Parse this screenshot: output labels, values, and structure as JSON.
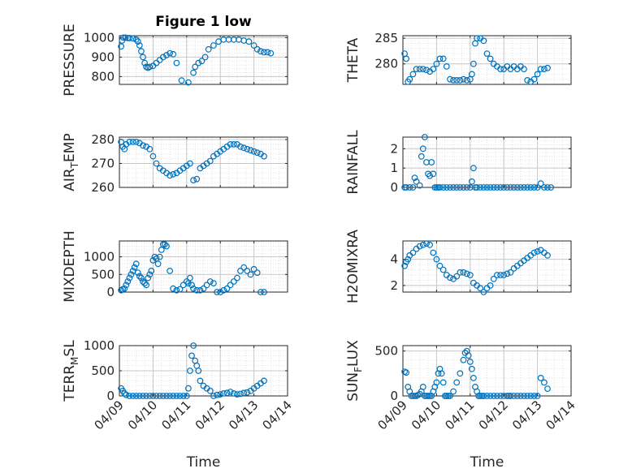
{
  "figure": {
    "title": "Figure 1 low"
  },
  "colors": {
    "marker": "#0072bd",
    "axis": "#262626",
    "grid": "#c8c8c8",
    "minor_grid": "#e2e2e2"
  },
  "chart_data": [
    {
      "id": "pressure",
      "type": "scatter",
      "title": "Figure 1 low",
      "ylabel": "PRESSURE",
      "ylim": [
        760,
        1010
      ],
      "yticks": [
        800,
        900,
        1000
      ],
      "xlim": [
        0,
        5
      ],
      "grid": true,
      "xlabel": "",
      "xticklabels": [],
      "x": [
        0.05,
        0.08,
        0.12,
        0.18,
        0.25,
        0.3,
        0.4,
        0.5,
        0.55,
        0.6,
        0.65,
        0.7,
        0.75,
        0.8,
        0.85,
        0.9,
        1.0,
        1.1,
        1.2,
        1.3,
        1.4,
        1.5,
        1.6,
        1.7,
        1.85,
        2.05,
        2.2,
        2.25,
        2.35,
        2.45,
        2.55,
        2.65,
        2.8,
        2.95,
        3.1,
        3.25,
        3.4,
        3.55,
        3.7,
        3.85,
        4.0,
        4.1,
        4.2,
        4.3,
        4.4,
        4.5
      ],
      "y": [
        955,
        985,
        1000,
        1000,
        998,
        998,
        996,
        990,
        980,
        960,
        930,
        900,
        870,
        850,
        845,
        850,
        855,
        870,
        885,
        900,
        910,
        920,
        915,
        870,
        780,
        770,
        820,
        850,
        870,
        880,
        900,
        940,
        960,
        980,
        990,
        990,
        990,
        990,
        985,
        980,
        960,
        940,
        930,
        925,
        925,
        920
      ]
    },
    {
      "id": "theta",
      "type": "scatter",
      "ylabel": "THETA",
      "ylim": [
        276,
        285.5
      ],
      "yticks": [
        280,
        285
      ],
      "xlim": [
        0,
        5
      ],
      "grid": true,
      "xlabel": "",
      "xticklabels": [],
      "x": [
        0.05,
        0.1,
        0.15,
        0.2,
        0.3,
        0.4,
        0.5,
        0.6,
        0.7,
        0.8,
        0.9,
        1.0,
        1.1,
        1.2,
        1.3,
        1.4,
        1.5,
        1.6,
        1.7,
        1.8,
        1.9,
        2.0,
        2.05,
        2.1,
        2.15,
        2.2,
        2.3,
        2.4,
        2.5,
        2.6,
        2.7,
        2.8,
        2.9,
        3.0,
        3.1,
        3.2,
        3.3,
        3.4,
        3.5,
        3.6,
        3.7,
        3.8,
        3.9,
        4.0,
        4.1,
        4.2,
        4.3
      ],
      "y": [
        282,
        281,
        276.5,
        277,
        278,
        279,
        279,
        279,
        278.8,
        278.5,
        279,
        280,
        281,
        281,
        279.5,
        277,
        276.8,
        276.8,
        276.8,
        277,
        276.8,
        277,
        278,
        280,
        284,
        285,
        285,
        284.5,
        282,
        281,
        280,
        279.5,
        279,
        279,
        279.5,
        279,
        279.5,
        279,
        279.5,
        279,
        276.8,
        276.5,
        277,
        278,
        279,
        279,
        279.2
      ]
    },
    {
      "id": "air_temp",
      "type": "scatter",
      "ylabel": "AIR_TEMP",
      "ylim": [
        260,
        281
      ],
      "yticks": [
        260,
        270,
        280
      ],
      "xlim": [
        0,
        5
      ],
      "grid": true,
      "xlabel": "",
      "xticklabels": [],
      "x": [
        0.05,
        0.1,
        0.15,
        0.2,
        0.3,
        0.4,
        0.5,
        0.6,
        0.7,
        0.8,
        0.9,
        1.0,
        1.1,
        1.2,
        1.3,
        1.4,
        1.5,
        1.6,
        1.7,
        1.8,
        1.9,
        2.0,
        2.1,
        2.2,
        2.3,
        2.4,
        2.5,
        2.6,
        2.7,
        2.8,
        2.9,
        3.0,
        3.1,
        3.2,
        3.3,
        3.4,
        3.5,
        3.6,
        3.7,
        3.8,
        3.9,
        4.0,
        4.1,
        4.2,
        4.3
      ],
      "y": [
        279,
        277,
        276,
        278,
        279,
        279,
        279,
        278.5,
        277.5,
        277,
        276,
        273,
        270,
        268,
        267,
        266,
        265,
        265.5,
        266,
        267,
        268,
        269,
        270,
        263,
        263.5,
        268,
        269,
        270,
        271,
        273,
        274,
        275,
        276,
        277,
        278,
        278,
        278,
        277,
        276.5,
        276,
        275.5,
        275,
        274.5,
        274,
        273
      ]
    },
    {
      "id": "rainfall",
      "type": "scatter",
      "ylabel": "RAINFALL",
      "ylim": [
        0,
        2.6
      ],
      "yticks": [
        0,
        1,
        2
      ],
      "xlim": [
        0,
        5
      ],
      "grid": true,
      "xlabel": "",
      "xticklabels": [],
      "x": [
        0.05,
        0.1,
        0.2,
        0.3,
        0.35,
        0.4,
        0.5,
        0.55,
        0.6,
        0.65,
        0.7,
        0.75,
        0.8,
        0.85,
        0.9,
        0.95,
        1.0,
        1.05,
        1.1,
        1.2,
        1.3,
        1.4,
        1.5,
        1.6,
        1.7,
        1.8,
        1.9,
        2.0,
        2.05,
        2.1,
        2.15,
        2.2,
        2.3,
        2.4,
        2.5,
        2.6,
        2.7,
        2.8,
        2.9,
        3.0,
        3.1,
        3.2,
        3.3,
        3.4,
        3.5,
        3.6,
        3.7,
        3.8,
        3.9,
        4.0,
        4.1,
        4.2,
        4.3,
        4.4
      ],
      "y": [
        0,
        0,
        0,
        0,
        0.5,
        0.3,
        0.1,
        1.6,
        2.0,
        2.6,
        1.3,
        0.7,
        0.6,
        1.3,
        0.7,
        0,
        0,
        0,
        0,
        0,
        0,
        0,
        0,
        0,
        0,
        0,
        0,
        0,
        0.3,
        1.0,
        0,
        0,
        0,
        0,
        0,
        0,
        0,
        0,
        0,
        0,
        0,
        0,
        0,
        0,
        0,
        0,
        0,
        0,
        0,
        0,
        0.2,
        0,
        0,
        0
      ]
    },
    {
      "id": "mixdepth",
      "type": "scatter",
      "ylabel": "MIXDEPTH",
      "ylim": [
        0,
        1450
      ],
      "yticks": [
        0,
        500,
        1000
      ],
      "xlim": [
        0,
        5
      ],
      "grid": true,
      "xlabel": "",
      "xticklabels": [],
      "x": [
        0.05,
        0.1,
        0.15,
        0.2,
        0.25,
        0.3,
        0.35,
        0.4,
        0.45,
        0.5,
        0.55,
        0.6,
        0.65,
        0.7,
        0.75,
        0.8,
        0.85,
        0.9,
        0.95,
        1.0,
        1.05,
        1.1,
        1.15,
        1.2,
        1.25,
        1.3,
        1.35,
        1.4,
        1.5,
        1.6,
        1.7,
        1.8,
        1.9,
        2.0,
        2.05,
        2.1,
        2.15,
        2.2,
        2.3,
        2.4,
        2.5,
        2.6,
        2.7,
        2.8,
        2.9,
        3.0,
        3.1,
        3.2,
        3.3,
        3.4,
        3.5,
        3.6,
        3.7,
        3.8,
        3.9,
        4.0,
        4.1,
        4.2,
        4.3
      ],
      "y": [
        50,
        80,
        100,
        200,
        300,
        400,
        500,
        600,
        700,
        800,
        550,
        450,
        400,
        300,
        250,
        200,
        400,
        500,
        600,
        900,
        1000,
        950,
        800,
        1000,
        1200,
        1350,
        1350,
        1300,
        600,
        100,
        50,
        80,
        200,
        300,
        250,
        400,
        200,
        100,
        50,
        50,
        100,
        200,
        300,
        250,
        0,
        0,
        50,
        100,
        200,
        300,
        400,
        600,
        700,
        600,
        500,
        650,
        550,
        0,
        0
      ]
    },
    {
      "id": "h2omixra",
      "type": "scatter",
      "ylabel": "H2OMIXRA",
      "ylim": [
        1.5,
        5.4
      ],
      "yticks": [
        2,
        4
      ],
      "xlim": [
        0,
        5
      ],
      "grid": true,
      "xlabel": "",
      "xticklabels": [],
      "x": [
        0.05,
        0.1,
        0.15,
        0.2,
        0.3,
        0.4,
        0.5,
        0.6,
        0.7,
        0.8,
        0.9,
        1.0,
        1.1,
        1.2,
        1.3,
        1.4,
        1.5,
        1.6,
        1.7,
        1.8,
        1.9,
        2.0,
        2.1,
        2.2,
        2.3,
        2.4,
        2.5,
        2.6,
        2.7,
        2.8,
        2.9,
        3.0,
        3.1,
        3.2,
        3.3,
        3.4,
        3.5,
        3.6,
        3.7,
        3.8,
        3.9,
        4.0,
        4.1,
        4.2,
        4.3
      ],
      "y": [
        3.5,
        3.8,
        4.0,
        4.3,
        4.5,
        4.8,
        5.0,
        5.1,
        5.2,
        5.1,
        4.5,
        4.0,
        3.5,
        3.2,
        2.8,
        2.6,
        2.5,
        2.7,
        3.0,
        3.0,
        2.9,
        2.8,
        2.2,
        2.0,
        1.8,
        1.5,
        1.8,
        2.0,
        2.5,
        2.8,
        2.8,
        2.8,
        2.9,
        3.0,
        3.3,
        3.5,
        3.7,
        3.9,
        4.1,
        4.3,
        4.5,
        4.6,
        4.7,
        4.5,
        4.3
      ]
    },
    {
      "id": "terr_msl",
      "type": "scatter",
      "ylabel": "TERR_MSL",
      "ylim": [
        0,
        1000
      ],
      "yticks": [
        0,
        500,
        1000
      ],
      "xlim": [
        0,
        5
      ],
      "grid": true,
      "xlabel": "Time",
      "xticklabels": [
        "04/09",
        "04/10",
        "04/11",
        "04/12",
        "04/13",
        "04/14"
      ],
      "x": [
        0.05,
        0.1,
        0.15,
        0.2,
        0.3,
        0.4,
        0.5,
        0.6,
        0.7,
        0.8,
        0.9,
        1.0,
        1.1,
        1.2,
        1.3,
        1.4,
        1.5,
        1.6,
        1.7,
        1.8,
        1.9,
        2.0,
        2.05,
        2.1,
        2.15,
        2.2,
        2.25,
        2.3,
        2.35,
        2.4,
        2.5,
        2.6,
        2.7,
        2.8,
        2.9,
        3.0,
        3.1,
        3.2,
        3.3,
        3.4,
        3.5,
        3.6,
        3.7,
        3.8,
        3.9,
        4.0,
        4.1,
        4.2,
        4.3
      ],
      "y": [
        150,
        100,
        50,
        20,
        0,
        0,
        0,
        0,
        0,
        0,
        0,
        0,
        0,
        0,
        0,
        0,
        0,
        0,
        0,
        0,
        0,
        0,
        150,
        500,
        800,
        1000,
        700,
        600,
        500,
        300,
        200,
        150,
        100,
        0,
        20,
        30,
        50,
        60,
        80,
        50,
        30,
        40,
        60,
        70,
        100,
        150,
        200,
        250,
        300
      ]
    },
    {
      "id": "sun_flux",
      "type": "scatter",
      "ylabel": "SUN_FLUX",
      "ylim": [
        0,
        560
      ],
      "yticks": [
        0,
        500
      ],
      "xlim": [
        0,
        5
      ],
      "grid": true,
      "xlabel": "Time",
      "xticklabels": [
        "04/09",
        "04/10",
        "04/11",
        "04/12",
        "04/13",
        "04/14"
      ],
      "x": [
        0.05,
        0.1,
        0.15,
        0.2,
        0.25,
        0.3,
        0.35,
        0.4,
        0.45,
        0.5,
        0.55,
        0.6,
        0.65,
        0.7,
        0.75,
        0.8,
        0.85,
        0.9,
        0.95,
        1.0,
        1.05,
        1.1,
        1.15,
        1.2,
        1.25,
        1.3,
        1.35,
        1.4,
        1.5,
        1.6,
        1.7,
        1.8,
        1.85,
        1.9,
        1.95,
        2.0,
        2.05,
        2.1,
        2.15,
        2.2,
        2.25,
        2.3,
        2.35,
        2.4,
        2.5,
        2.6,
        2.7,
        2.8,
        2.9,
        3.0,
        3.1,
        3.15,
        3.2,
        3.3,
        3.4,
        3.5,
        3.6,
        3.7,
        3.8,
        3.9,
        4.0,
        4.1,
        4.2,
        4.3
      ],
      "y": [
        270,
        260,
        100,
        50,
        0,
        0,
        0,
        0,
        10,
        20,
        50,
        100,
        0,
        0,
        0,
        0,
        0,
        50,
        100,
        150,
        250,
        300,
        250,
        150,
        0,
        0,
        0,
        0,
        50,
        150,
        250,
        400,
        480,
        500,
        450,
        380,
        300,
        200,
        100,
        50,
        0,
        0,
        0,
        0,
        0,
        0,
        0,
        0,
        0,
        0,
        0,
        0,
        0,
        0,
        0,
        0,
        0,
        0,
        0,
        0,
        0,
        200,
        150,
        80
      ]
    }
  ]
}
